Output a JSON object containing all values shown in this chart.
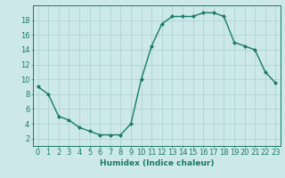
{
  "x": [
    0,
    1,
    2,
    3,
    4,
    5,
    6,
    7,
    8,
    9,
    10,
    11,
    12,
    13,
    14,
    15,
    16,
    17,
    18,
    19,
    20,
    21,
    22,
    23
  ],
  "y": [
    9,
    8,
    5,
    4.5,
    3.5,
    3,
    2.5,
    2.5,
    2.5,
    4,
    10,
    14.5,
    17.5,
    18.5,
    18.5,
    18.5,
    19,
    19,
    18.5,
    15,
    14.5,
    14,
    11,
    9.5
  ],
  "line_color": "#1a7a6a",
  "marker": "D",
  "marker_size": 2.0,
  "bg_color": "#cce8ea",
  "grid_color": "#aacfcf",
  "xlabel": "Humidex (Indice chaleur)",
  "xlim": [
    -0.5,
    23.5
  ],
  "ylim": [
    1,
    20
  ],
  "yticks": [
    2,
    4,
    6,
    8,
    10,
    12,
    14,
    16,
    18
  ],
  "xticks": [
    0,
    1,
    2,
    3,
    4,
    5,
    6,
    7,
    8,
    9,
    10,
    11,
    12,
    13,
    14,
    15,
    16,
    17,
    18,
    19,
    20,
    21,
    22,
    23
  ],
  "xlabel_fontsize": 6.5,
  "tick_fontsize": 6.0,
  "line_width": 1.0
}
